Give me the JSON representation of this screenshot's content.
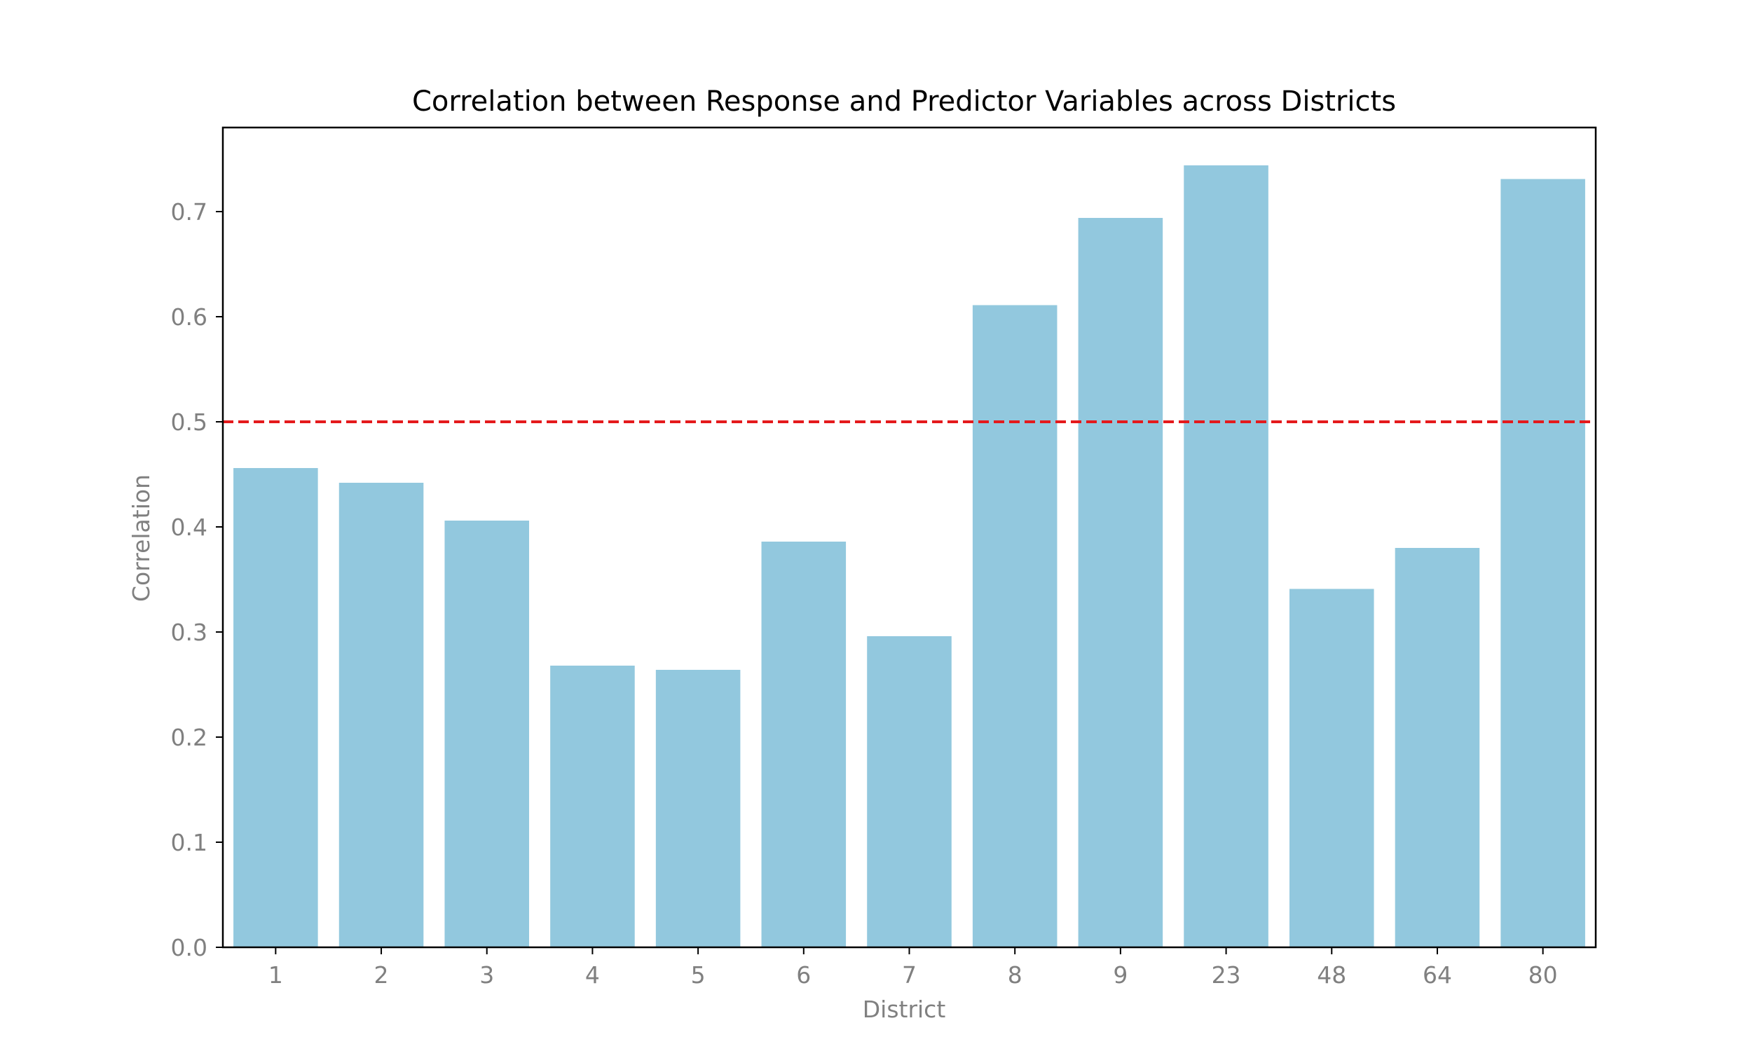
{
  "chart_data": {
    "type": "bar",
    "title": "Correlation between Response and Predictor Variables across Districts",
    "xlabel": "District",
    "ylabel": "Correlation",
    "categories": [
      "1",
      "2",
      "3",
      "4",
      "5",
      "6",
      "7",
      "8",
      "9",
      "23",
      "48",
      "64",
      "80"
    ],
    "values": [
      0.456,
      0.442,
      0.406,
      0.268,
      0.264,
      0.386,
      0.296,
      0.611,
      0.694,
      0.744,
      0.341,
      0.38,
      0.731
    ],
    "ylim": [
      0,
      0.78
    ],
    "yticks": [
      "0.0",
      "0.1",
      "0.2",
      "0.3",
      "0.4",
      "0.5",
      "0.6",
      "0.7"
    ],
    "reference_line": {
      "y": 0.5,
      "style": "dashed",
      "color": "#e41a1c"
    },
    "bar_color": "#92c8de",
    "axis_label_color": "#808080",
    "grid": false,
    "legend": "none"
  }
}
